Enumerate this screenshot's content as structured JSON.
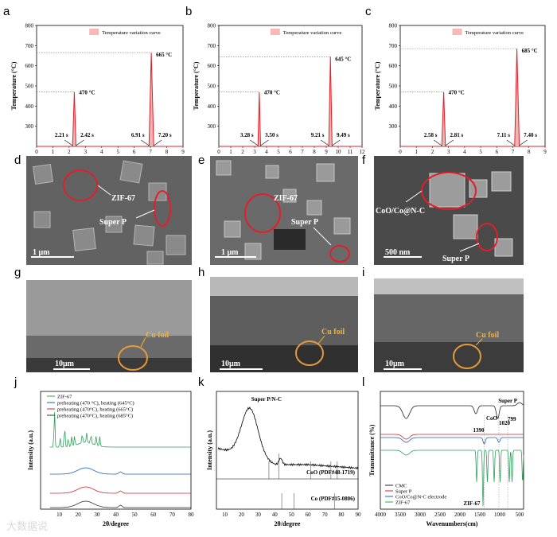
{
  "panel_letters": [
    "a",
    "b",
    "c",
    "d",
    "e",
    "f",
    "g",
    "h",
    "i",
    "j",
    "k",
    "l"
  ],
  "watermark": "大数据说",
  "chart_data": [
    {
      "id": "a",
      "type": "line",
      "xlabel": "Time (s)",
      "ylabel": "Temperature (°C)",
      "xlim": [
        0,
        9
      ],
      "ylim": [
        200,
        800
      ],
      "xticks": [
        0,
        1,
        2,
        3,
        4,
        5,
        6,
        7,
        8,
        9
      ],
      "yticks": [
        300,
        400,
        500,
        600,
        700,
        800
      ],
      "legend": "Temperature variation curve",
      "series": [
        {
          "color": "#e0202a",
          "points": [
            [
              0,
              200
            ],
            [
              2.21,
              200
            ],
            [
              2.32,
              470
            ],
            [
              2.42,
              200
            ],
            [
              6.91,
              200
            ],
            [
              7.05,
              665
            ],
            [
              7.2,
              200
            ],
            [
              9,
              200
            ]
          ]
        }
      ],
      "peaks": [
        {
          "x": 2.32,
          "y": 470,
          "label": "470 °C"
        },
        {
          "x": 7.05,
          "y": 665,
          "label": "665 °C"
        }
      ],
      "time_labels": [
        {
          "x": 2.21,
          "label": "2.21 s"
        },
        {
          "x": 2.42,
          "label": "2.42 s"
        },
        {
          "x": 6.91,
          "label": "6.91 s"
        },
        {
          "x": 7.2,
          "label": "7.20 s"
        }
      ]
    },
    {
      "id": "b",
      "type": "line",
      "xlabel": "Time (s)",
      "ylabel": "Temperature (°C)",
      "xlim": [
        0,
        12
      ],
      "ylim": [
        200,
        800
      ],
      "xticks": [
        0,
        1,
        2,
        3,
        4,
        5,
        6,
        7,
        8,
        9,
        10,
        11,
        12
      ],
      "yticks": [
        300,
        400,
        500,
        600,
        700,
        800
      ],
      "legend": "Temperature variation curve",
      "series": [
        {
          "color": "#e0202a",
          "points": [
            [
              0,
              200
            ],
            [
              3.28,
              200
            ],
            [
              3.39,
              470
            ],
            [
              3.5,
              200
            ],
            [
              9.21,
              200
            ],
            [
              9.35,
              645
            ],
            [
              9.49,
              200
            ],
            [
              12,
              200
            ]
          ]
        }
      ],
      "peaks": [
        {
          "x": 3.39,
          "y": 470,
          "label": "470 °C"
        },
        {
          "x": 9.35,
          "y": 645,
          "label": "645 °C"
        }
      ],
      "time_labels": [
        {
          "x": 3.28,
          "label": "3.28 s"
        },
        {
          "x": 3.5,
          "label": "3.50 s"
        },
        {
          "x": 9.21,
          "label": "9.21 s"
        },
        {
          "x": 9.49,
          "label": "9.49 s"
        }
      ]
    },
    {
      "id": "c",
      "type": "line",
      "xlabel": "Time(s)",
      "ylabel": "Temperature (°C)",
      "xlim": [
        0,
        9
      ],
      "ylim": [
        200,
        800
      ],
      "xticks": [
        0,
        1,
        2,
        3,
        4,
        5,
        6,
        7,
        8,
        9
      ],
      "yticks": [
        300,
        400,
        500,
        600,
        700,
        800
      ],
      "legend": "Temperature variation curve",
      "series": [
        {
          "color": "#e0202a",
          "points": [
            [
              0,
              200
            ],
            [
              2.58,
              200
            ],
            [
              2.7,
              470
            ],
            [
              2.81,
              200
            ],
            [
              7.11,
              200
            ],
            [
              7.25,
              685
            ],
            [
              7.4,
              200
            ],
            [
              9,
              200
            ]
          ]
        }
      ],
      "peaks": [
        {
          "x": 2.7,
          "y": 470,
          "label": "470 °C"
        },
        {
          "x": 7.25,
          "y": 685,
          "label": "685 °C"
        }
      ],
      "time_labels": [
        {
          "x": 2.58,
          "label": "2.58 s"
        },
        {
          "x": 2.81,
          "label": "2.81 s"
        },
        {
          "x": 7.11,
          "label": "7.11 s"
        },
        {
          "x": 7.4,
          "label": "7.40 s"
        }
      ]
    },
    {
      "id": "j",
      "type": "line",
      "xlabel": "2θ/degree",
      "ylabel": "Intensity (a.u.)",
      "xlim": [
        0,
        80
      ],
      "xticks": [
        10,
        20,
        30,
        40,
        50,
        60,
        70,
        80
      ],
      "legend_entries": [
        {
          "label": "ZIF-67",
          "color": "#2ca05a"
        },
        {
          "label": "preheating (470 °C), heating (645°C)",
          "color": "#1f5fbf"
        },
        {
          "label": "preheating (470°C), heating (665°C)",
          "color": "#d7262d"
        },
        {
          "label": "preheating (470°C), heating (685°C)",
          "color": "#333333"
        }
      ]
    },
    {
      "id": "k",
      "type": "line",
      "xlabel": "2θ/degree",
      "ylabel": "Intensity (a.u.)",
      "xlim": [
        5,
        90
      ],
      "xticks": [
        10,
        20,
        30,
        40,
        50,
        60,
        70,
        80,
        90
      ],
      "annotations": [
        "Super P/N-C",
        "CoO (PDF#48-1719)",
        "Co (PDF#15-0806)"
      ],
      "coo_ref_lines": [
        36.5,
        42.4,
        61.5,
        73.7,
        77.5
      ],
      "co_ref_lines": [
        44.2,
        51.5,
        75.8
      ]
    },
    {
      "id": "l",
      "type": "line",
      "xlabel": "Wavenumbers(cm)",
      "ylabel": "Transmittance (%)",
      "xlim": [
        4000,
        400
      ],
      "xticks": [
        4000,
        3500,
        3000,
        2500,
        2000,
        1500,
        1000,
        500
      ],
      "legend_entries": [
        {
          "label": "CMC",
          "color": "#222222"
        },
        {
          "label": "Super P",
          "color": "#d7262d"
        },
        {
          "label": "CoO/Co@N-C electrode",
          "color": "#1f5fbf"
        },
        {
          "label": "ZIF-67",
          "color": "#2ca05a"
        }
      ],
      "annotations": [
        "Super P",
        "CoO",
        "1390",
        "1020",
        "799",
        "ZIF-67"
      ]
    }
  ],
  "sem_images": [
    {
      "id": "d",
      "labels": [
        "ZIF-67",
        "Super P"
      ],
      "scale_bar": "1 μm"
    },
    {
      "id": "e",
      "labels": [
        "ZIF-67",
        "Super P"
      ],
      "scale_bar": "1 μm"
    },
    {
      "id": "f",
      "labels": [
        "CoO/Co@N-C",
        "Super P"
      ],
      "scale_bar": "500 nm"
    },
    {
      "id": "g",
      "labels": [
        "Cu foil"
      ],
      "scale_bar": "10μm"
    },
    {
      "id": "h",
      "labels": [
        "Cu foil"
      ],
      "scale_bar": "10μm"
    },
    {
      "id": "i",
      "labels": [
        "Cu foil"
      ],
      "scale_bar": "10μm"
    }
  ],
  "colors": {
    "peak": "#e0202a",
    "circle_red": "#e0202a",
    "circle_orange": "#e69a3a",
    "cu_label": "#f2b233"
  }
}
